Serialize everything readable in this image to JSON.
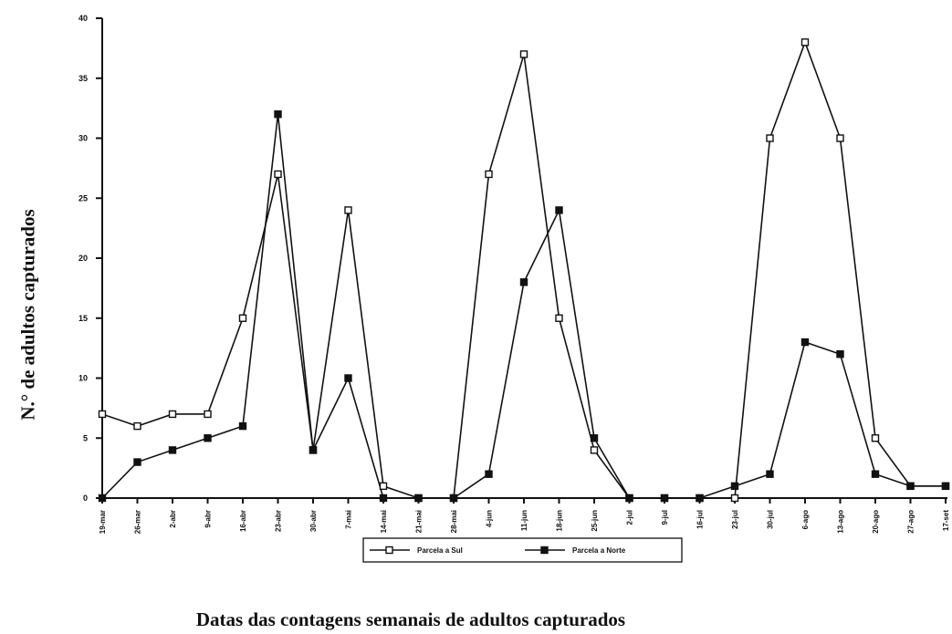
{
  "chart_data": {
    "type": "line",
    "title": "",
    "xlabel": "Datas das contagens semanais de adultos capturados",
    "ylabel": "N.° de adultos capturados",
    "ylim": [
      0,
      40
    ],
    "yticks": [
      0,
      5,
      10,
      15,
      20,
      25,
      30,
      35,
      40
    ],
    "categories": [
      "19-mar",
      "26-mar",
      "2-abr",
      "9-abr",
      "16-abr",
      "23-abr",
      "30-abr",
      "7-mai",
      "14-mai",
      "21-mai",
      "28-mai",
      "4-jun",
      "11-jun",
      "18-jun",
      "25-jun",
      "2-jul",
      "9-jul",
      "16-jul",
      "23-jul",
      "30-jul",
      "6-ago",
      "13-ago",
      "20-ago",
      "27-ago",
      "17-set"
    ],
    "legend_position": "bottom",
    "grid": false,
    "series": [
      {
        "name": "Parcela a Sul",
        "marker": "open-square",
        "color": "#111111",
        "values": [
          7,
          6,
          7,
          7,
          15,
          27,
          4,
          24,
          1,
          0,
          0,
          27,
          37,
          15,
          4,
          0,
          0,
          0,
          0,
          30,
          38,
          30,
          5,
          1,
          1
        ]
      },
      {
        "name": "Parcela a Norte",
        "marker": "filled-square",
        "color": "#111111",
        "values": [
          0,
          3,
          4,
          5,
          6,
          32,
          4,
          10,
          0,
          0,
          0,
          2,
          18,
          24,
          5,
          0,
          0,
          0,
          1,
          2,
          13,
          12,
          2,
          1,
          1
        ]
      }
    ]
  }
}
